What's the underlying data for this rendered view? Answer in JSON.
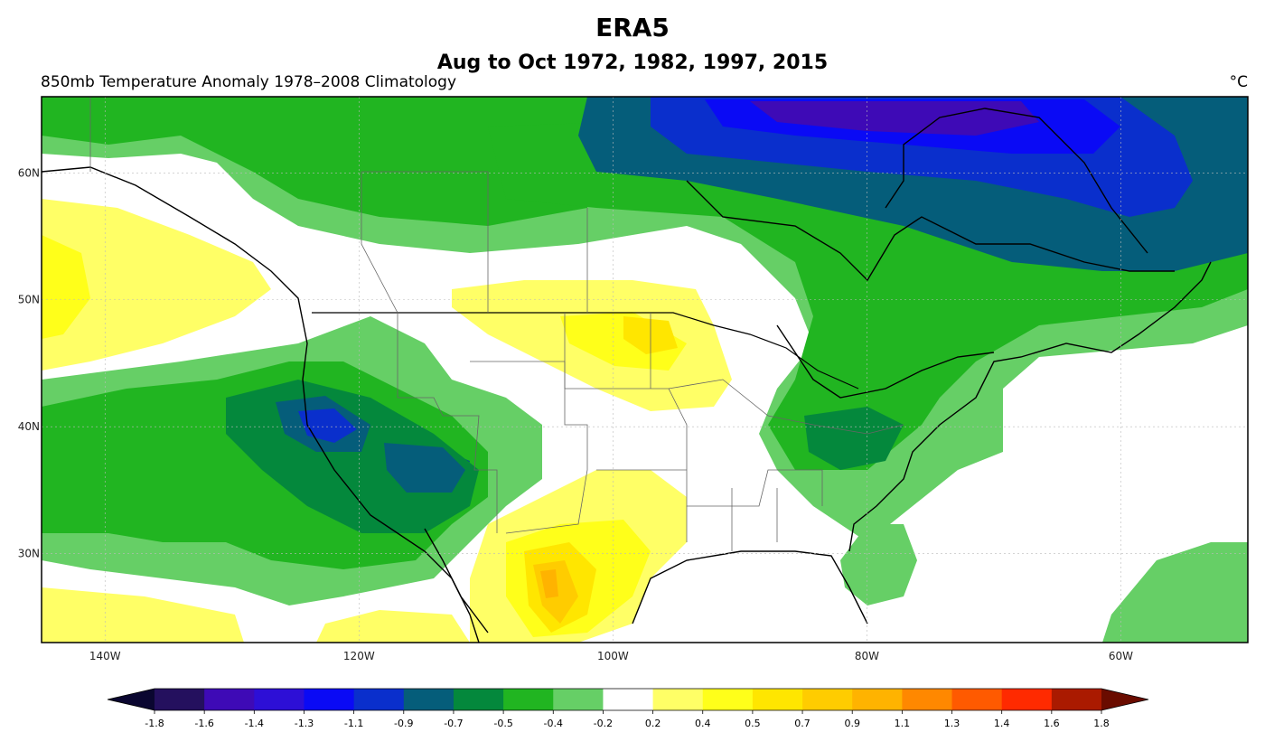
{
  "title": "ERA5",
  "subtitle": "Aug to Oct 1972, 1982, 1997, 2015",
  "left_title": "850mb Temperature Anomaly  1978–2008 Climatology",
  "units": "°C",
  "map": {
    "projection": "PlateCarree",
    "extent_lon": [
      -145,
      -50
    ],
    "extent_lat": [
      23,
      66
    ],
    "lon_ticks": [
      {
        "value": -140,
        "label": "140W"
      },
      {
        "value": -120,
        "label": "120W"
      },
      {
        "value": -100,
        "label": "100W"
      },
      {
        "value": -80,
        "label": "80W"
      },
      {
        "value": -60,
        "label": "60W"
      }
    ],
    "lat_ticks": [
      {
        "value": 30,
        "label": "30N"
      },
      {
        "value": 40,
        "label": "40N"
      },
      {
        "value": 50,
        "label": "50N"
      },
      {
        "value": 60,
        "label": "60N"
      }
    ],
    "gridlines": true
  },
  "colorbar": {
    "extend": "both",
    "levels": [
      "-1.8",
      "-1.6",
      "-1.4",
      "-1.3",
      "-1.1",
      "-0.9",
      "-0.7",
      "-0.5",
      "-0.4",
      "-0.2",
      "0.2",
      "0.4",
      "0.5",
      "0.7",
      "0.9",
      "1.1",
      "1.3",
      "1.4",
      "1.6",
      "1.8"
    ],
    "colors": [
      "#0a0630",
      "#24105e",
      "#3e0ab6",
      "#2d0fd6",
      "#0a0af5",
      "#0a2fcc",
      "#055d7a",
      "#04883c",
      "#21b521",
      "#66cf66",
      "#ffffff",
      "#ffff66",
      "#ffff1a",
      "#ffe600",
      "#ffcc00",
      "#ffb300",
      "#ff8800",
      "#ff5a00",
      "#ff2a00",
      "#aa1a00",
      "#6a0c00"
    ]
  }
}
